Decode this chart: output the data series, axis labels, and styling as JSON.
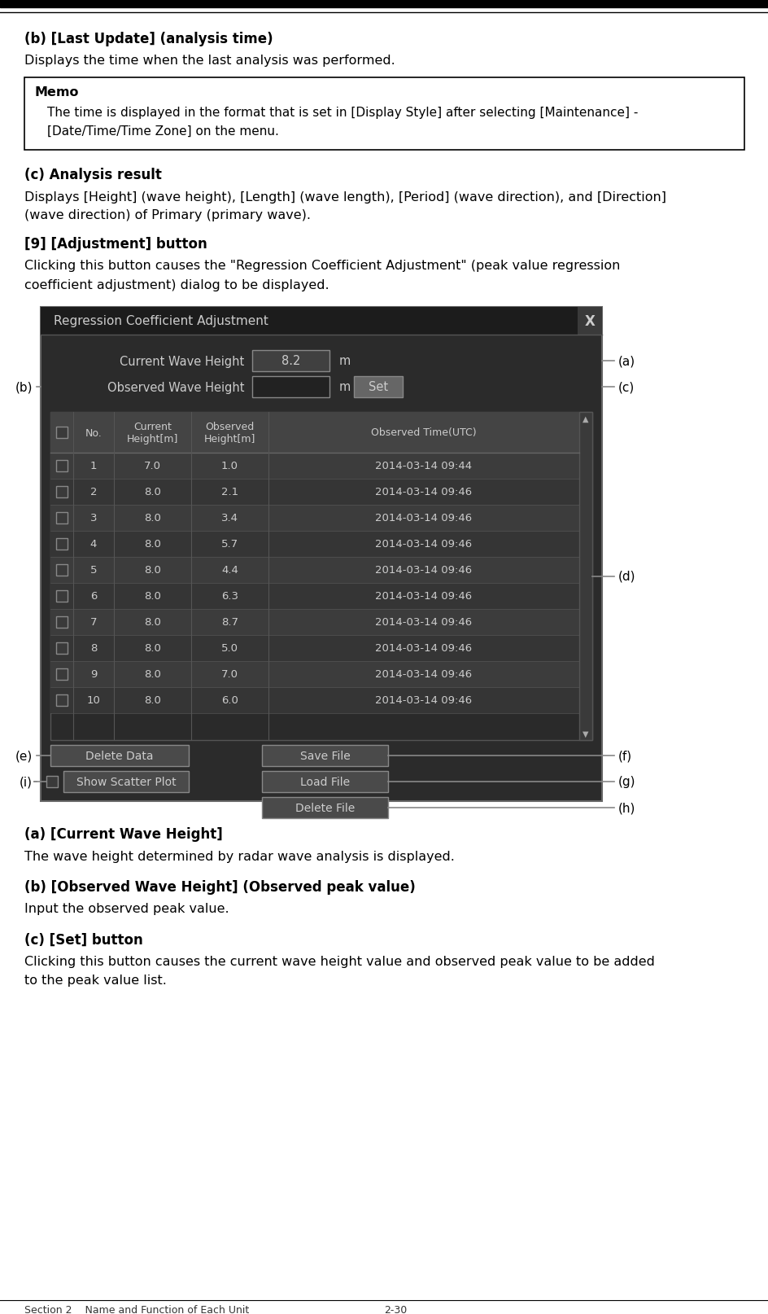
{
  "bg_color": "#ffffff",
  "section_header_left": "Section 2    Name and Function of Each Unit",
  "section_header_right": "2-30",
  "dialog_bg": "#2b2b2b",
  "dialog_header_bg": "#1c1c1c",
  "dialog_border": "#555555",
  "dialog_text_color": "#cccccc",
  "table_row_bg1": "#3c3c3c",
  "table_row_bg2": "#353535",
  "table_header_bg": "#444444",
  "button_bg": "#4a4a4a",
  "button_text": "#cccccc",
  "input_bg_filled": "#404040",
  "input_bg_empty": "#222222",
  "scrollbar_color": "#404040",
  "arrow_color": "#888888",
  "memo_border": "#000000",
  "table_data": [
    [
      "1",
      "7.0",
      "1.0",
      "2014-03-14 09:44"
    ],
    [
      "2",
      "8.0",
      "2.1",
      "2014-03-14 09:46"
    ],
    [
      "3",
      "8.0",
      "3.4",
      "2014-03-14 09:46"
    ],
    [
      "4",
      "8.0",
      "5.7",
      "2014-03-14 09:46"
    ],
    [
      "5",
      "8.0",
      "4.4",
      "2014-03-14 09:46"
    ],
    [
      "6",
      "8.0",
      "6.3",
      "2014-03-14 09:46"
    ],
    [
      "7",
      "8.0",
      "8.7",
      "2014-03-14 09:46"
    ],
    [
      "8",
      "8.0",
      "5.0",
      "2014-03-14 09:46"
    ],
    [
      "9",
      "8.0",
      "7.0",
      "2014-03-14 09:46"
    ],
    [
      "10",
      "8.0",
      "6.0",
      "2014-03-14 09:46"
    ]
  ]
}
